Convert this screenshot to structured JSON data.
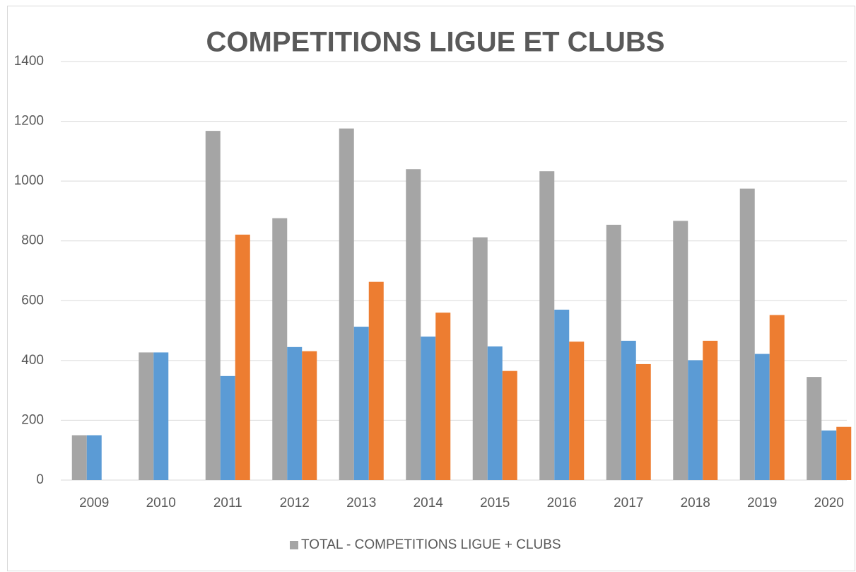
{
  "chart_data": {
    "type": "bar",
    "title": "COMPETITIONS LIGUE ET CLUBS",
    "categories": [
      "2009",
      "2010",
      "2011",
      "2012",
      "2013",
      "2014",
      "2015",
      "2016",
      "2017",
      "2018",
      "2019",
      "2020"
    ],
    "series": [
      {
        "name": "TOTAL - COMPETITIONS LIGUE + CLUBS",
        "color": "#a5a5a5",
        "values": [
          150,
          427,
          1168,
          876,
          1176,
          1040,
          812,
          1033,
          854,
          867,
          975,
          345
        ]
      },
      {
        "color": "#5b9bd5",
        "values": [
          150,
          427,
          348,
          445,
          513,
          480,
          447,
          570,
          466,
          401,
          422,
          166
        ]
      },
      {
        "color": "#ed7d31",
        "values": [
          null,
          null,
          821,
          431,
          663,
          560,
          365,
          463,
          388,
          466,
          552,
          178
        ]
      }
    ],
    "ylim": [
      0,
      1400
    ],
    "yticks": [
      0,
      200,
      400,
      600,
      800,
      1000,
      1200,
      1400
    ],
    "grid": true,
    "legend": "bottom"
  }
}
